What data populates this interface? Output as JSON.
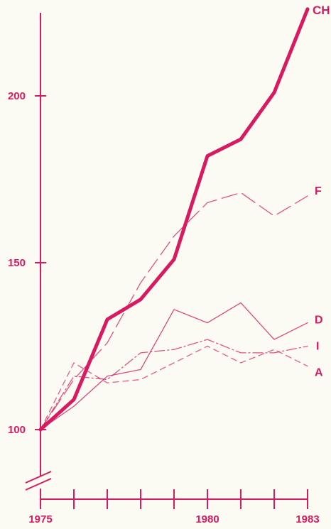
{
  "chart_data": {
    "type": "line",
    "x": [
      1975,
      1976,
      1977,
      1978,
      1979,
      1980,
      1981,
      1982,
      1983
    ],
    "x_tick_labels": [
      "1975",
      "1980",
      "1983"
    ],
    "y_tick_labels": [
      "100",
      "150",
      "200"
    ],
    "ylim": [
      85,
      228
    ],
    "axis_break": "y-axis broken below 100",
    "grid": false,
    "legend": "labels at right end of each line",
    "color": "#d81b60",
    "series": [
      {
        "name": "CH",
        "style": "solid-thick",
        "values": [
          100,
          109,
          133,
          139,
          151,
          182,
          187,
          201,
          226
        ]
      },
      {
        "name": "F",
        "style": "long-dash",
        "values": [
          100,
          115,
          126,
          144,
          158,
          168,
          171,
          164,
          170
        ]
      },
      {
        "name": "D",
        "style": "solid-thin",
        "values": [
          100,
          107,
          116,
          118,
          136,
          132,
          138,
          127,
          132
        ]
      },
      {
        "name": "I",
        "style": "dash-dot",
        "values": [
          100,
          116,
          115,
          123,
          124,
          127,
          123,
          123,
          125
        ]
      },
      {
        "name": "A",
        "style": "short-dash",
        "values": [
          100,
          120,
          114,
          115,
          120,
          125,
          120,
          124,
          119
        ]
      }
    ]
  }
}
